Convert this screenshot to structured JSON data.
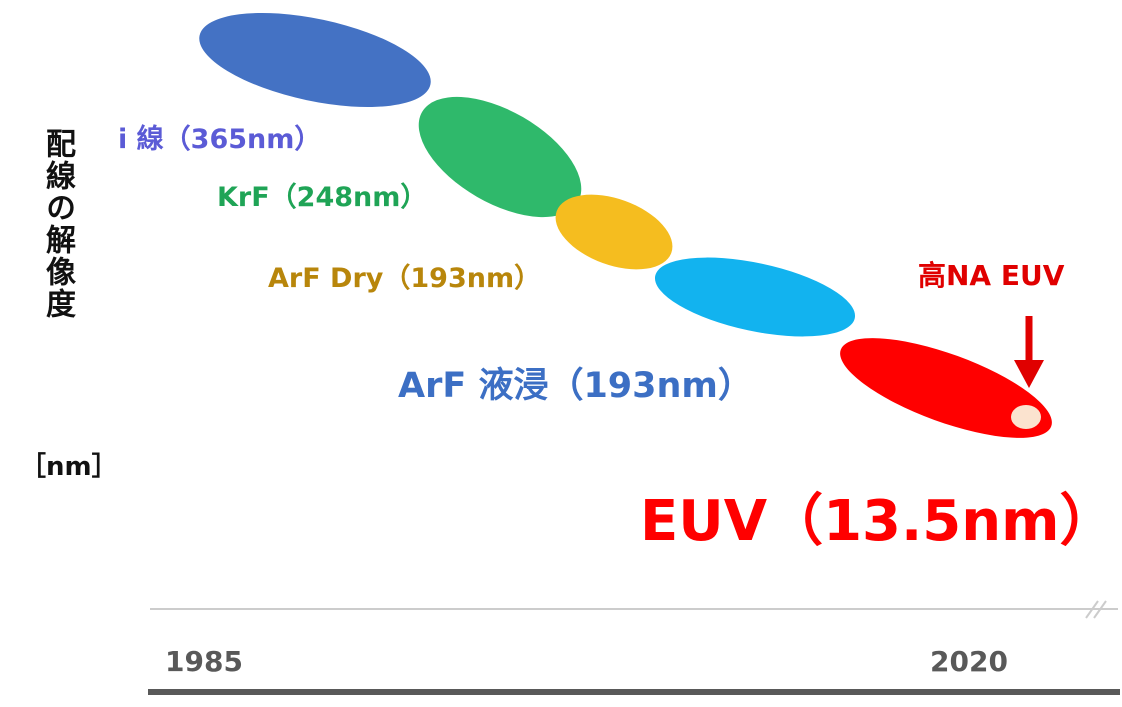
{
  "y_axis": {
    "label": "配線の解像度",
    "unit": "［nm］"
  },
  "x_axis": {
    "start_label": "1985",
    "end_label": "2020"
  },
  "generations": [
    {
      "label": "i 線（365nm）",
      "color": "#4472c4",
      "label_color": "#5b5bd6"
    },
    {
      "label": "KrF（248nm）",
      "color": "#2fb96b",
      "label_color": "#1fa456"
    },
    {
      "label": "ArF Dry（193nm）",
      "color": "#f5bd1f",
      "label_color": "#b8860b"
    },
    {
      "label": "ArF 液浸（193nm）",
      "color": "#12b3ef",
      "label_color": "#3c6fc4"
    },
    {
      "label": "EUV（13.5nm）",
      "color": "#ff0000",
      "label_color": "#ff0000"
    }
  ],
  "high_na": {
    "label": "高NA EUV",
    "color": "#e00000",
    "dot_color": "#fbe3cf"
  },
  "colors": {
    "axis_light": "#cccccc",
    "axis_dark": "#595959",
    "year_text": "#595959"
  }
}
